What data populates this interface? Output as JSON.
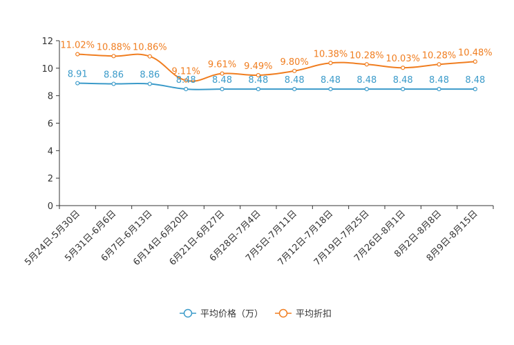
{
  "chart_data": {
    "type": "line",
    "categories": [
      "5月24日-5月30日",
      "5月31日-6月6日",
      "6月7日-6月13日",
      "6月14日-6月20日",
      "6月21日-6月27日",
      "6月28日-7月4日",
      "7月5日-7月11日",
      "7月12日-7月18日",
      "7月19日-7月25日",
      "7月26日-8月1日",
      "8月2日-8月8日",
      "8月9日-8月15日"
    ],
    "ylim": [
      0,
      12
    ],
    "yticks": [
      0,
      2,
      4,
      6,
      8,
      10,
      12
    ],
    "ytick_labels": [
      "0",
      "2",
      "4",
      "6",
      "8",
      "10",
      "12"
    ],
    "series": [
      {
        "name": "平均价格（万）",
        "color": "#3a9ac9",
        "values": [
          8.91,
          8.86,
          8.86,
          8.48,
          8.48,
          8.48,
          8.48,
          8.48,
          8.48,
          8.48,
          8.48,
          8.48
        ],
        "labels": [
          "8.91",
          "8.86",
          "8.86",
          "8.48",
          "8.48",
          "8.48",
          "8.48",
          "8.48",
          "8.48",
          "8.48",
          "8.48",
          "8.48"
        ]
      },
      {
        "name": "平均折扣",
        "color": "#f07d1f",
        "values": [
          11.02,
          10.88,
          10.86,
          9.11,
          9.61,
          9.49,
          9.8,
          10.38,
          10.28,
          10.03,
          10.28,
          10.48
        ],
        "labels": [
          "11.02%",
          "10.88%",
          "10.86%",
          "9.11%",
          "9.61%",
          "9.49%",
          "9.80%",
          "10.38%",
          "10.28%",
          "10.03%",
          "10.28%",
          "10.48%"
        ]
      }
    ],
    "legend_position": "bottom-center",
    "grid": false
  }
}
